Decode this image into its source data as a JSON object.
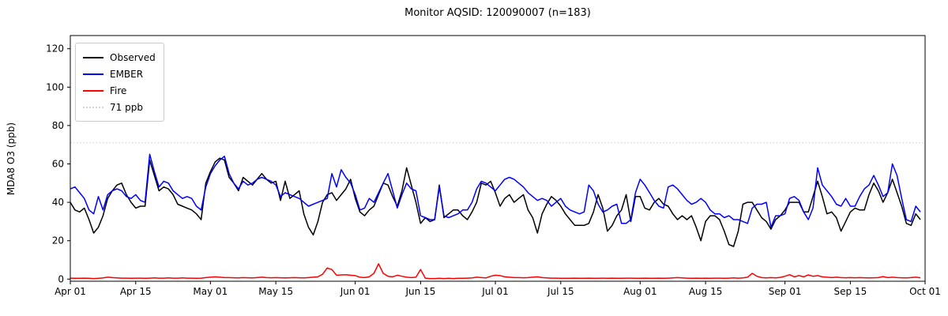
{
  "title": "Monitor AQSID: 120090007 (n=183)",
  "y_axis": {
    "label": "MDA8 O3 (ppb)",
    "ticks": [
      0,
      20,
      40,
      60,
      80,
      100,
      120
    ]
  },
  "x_axis": {
    "tick_labels": [
      "Apr 01",
      "Apr 15",
      "May 01",
      "May 15",
      "Jun 01",
      "Jun 15",
      "Jul 01",
      "Jul 15",
      "Aug 01",
      "Aug 15",
      "Sep 01",
      "Sep 15",
      "Oct 01"
    ],
    "tick_days": [
      0,
      14,
      30,
      44,
      61,
      75,
      91,
      105,
      122,
      136,
      153,
      167,
      183
    ]
  },
  "legend": {
    "items": [
      {
        "label": "Observed",
        "color": "#000000",
        "style": "solid"
      },
      {
        "label": "EMBER",
        "color": "#0000ff",
        "style": "solid"
      },
      {
        "label": "Fire",
        "color": "#ff0000",
        "style": "solid"
      },
      {
        "label": "71 ppb",
        "color": "#d3d3d3",
        "style": "dotted"
      }
    ]
  },
  "chart_data": {
    "type": "line",
    "title": "Monitor AQSID: 120090007 (n=183)",
    "xlabel": "",
    "ylabel": "MDA8 O3 (ppb)",
    "x_start": "Apr 01",
    "x_end": "Oct 01",
    "n_days": 183,
    "ylim": [
      -1.5,
      127
    ],
    "grid": false,
    "legend_position": "upper-left",
    "reference_line": {
      "label": "71 ppb",
      "value": 71,
      "color": "#d3d3d3",
      "style": "dotted"
    },
    "series": [
      {
        "name": "Observed",
        "color": "#000000",
        "values": [
          40,
          36,
          35,
          37,
          31,
          24,
          27,
          33,
          42,
          46,
          49,
          50,
          44,
          40,
          37,
          38,
          38,
          62,
          54,
          46,
          48,
          47,
          44,
          39,
          38,
          37,
          36,
          34,
          31,
          50,
          56,
          61,
          63,
          62,
          53,
          50,
          46,
          53,
          51,
          49,
          52,
          55,
          52,
          50,
          51,
          41,
          51,
          42,
          44,
          46,
          34,
          27,
          23,
          30,
          40,
          44,
          45,
          41,
          44,
          47,
          52,
          42,
          35,
          33,
          36,
          38,
          44,
          50,
          49,
          43,
          38,
          46,
          58,
          49,
          40,
          29,
          32,
          30,
          31,
          49,
          32,
          34,
          36,
          36,
          33,
          31,
          35,
          40,
          50,
          49,
          51,
          45,
          38,
          42,
          44,
          40,
          42,
          44,
          36,
          32,
          24,
          34,
          39,
          43,
          41,
          38,
          34,
          31,
          28,
          28,
          28,
          29,
          35,
          44,
          37,
          25,
          28,
          33,
          36,
          44,
          30,
          43,
          43,
          37,
          36,
          40,
          42,
          39,
          38,
          34,
          31,
          33,
          31,
          33,
          27,
          20,
          30,
          33,
          33,
          31,
          25,
          18,
          17,
          25,
          39,
          40,
          40,
          36,
          32,
          30,
          26,
          31,
          33,
          36,
          40,
          40,
          40,
          35,
          35,
          43,
          51,
          43,
          34,
          35,
          32,
          25,
          30,
          35,
          37,
          36,
          36,
          44,
          50,
          46,
          40,
          45,
          52,
          45,
          38,
          29,
          28,
          34,
          31
        ]
      },
      {
        "name": "EMBER",
        "color": "#0000ff",
        "values": [
          47,
          48,
          45,
          42,
          36,
          34,
          43,
          36,
          44,
          46,
          47,
          46,
          43,
          42,
          44,
          41,
          40,
          65,
          56,
          48,
          51,
          50,
          46,
          44,
          42,
          43,
          42,
          38,
          36,
          48,
          55,
          59,
          62,
          64,
          55,
          50,
          47,
          51,
          49,
          50,
          52,
          53,
          52,
          51,
          49,
          43,
          45,
          44,
          43,
          42,
          40,
          38,
          39,
          40,
          41,
          42,
          55,
          48,
          57,
          53,
          50,
          44,
          36,
          37,
          42,
          40,
          45,
          50,
          55,
          46,
          37,
          44,
          50,
          47,
          46,
          33,
          32,
          31,
          31,
          48,
          33,
          32,
          33,
          34,
          36,
          36,
          40,
          47,
          51,
          50,
          48,
          46,
          49,
          52,
          53,
          52,
          50,
          48,
          45,
          43,
          41,
          42,
          41,
          38,
          40,
          42,
          38,
          36,
          35,
          34,
          35,
          49,
          46,
          39,
          35,
          36,
          38,
          39,
          29,
          29,
          31,
          45,
          52,
          49,
          45,
          41,
          38,
          37,
          48,
          49,
          47,
          44,
          41,
          39,
          40,
          42,
          40,
          36,
          34,
          34,
          32,
          33,
          31,
          31,
          30,
          29,
          37,
          39,
          39,
          40,
          27,
          33,
          33,
          34,
          42,
          43,
          41,
          35,
          31,
          37,
          58,
          49,
          46,
          43,
          39,
          38,
          42,
          38,
          38,
          43,
          47,
          49,
          54,
          49,
          43,
          45,
          60,
          54,
          42,
          31,
          30,
          38,
          35
        ]
      },
      {
        "name": "Fire",
        "color": "#ff0000",
        "values": [
          0.5,
          0.4,
          0.4,
          0.5,
          0.4,
          0.3,
          0.4,
          0.6,
          1,
          0.8,
          0.6,
          0.5,
          0.5,
          0.4,
          0.5,
          0.5,
          0.4,
          0.5,
          0.6,
          0.5,
          0.5,
          0.6,
          0.5,
          0.5,
          0.6,
          0.5,
          0.5,
          0.4,
          0.5,
          0.8,
          1,
          1.2,
          1,
          0.8,
          0.8,
          0.7,
          0.6,
          0.8,
          0.7,
          0.6,
          0.8,
          1,
          0.8,
          0.7,
          0.8,
          0.7,
          0.6,
          0.7,
          0.8,
          0.7,
          0.6,
          0.8,
          1,
          1.2,
          2.5,
          5.8,
          5,
          2,
          2.2,
          2.3,
          2,
          1.8,
          1,
          0.8,
          1.2,
          3,
          8,
          3,
          1.5,
          1.2,
          2,
          1.5,
          1,
          0.8,
          1,
          5,
          0.5,
          0.3,
          0.3,
          0.4,
          0.3,
          0.4,
          0.3,
          0.4,
          0.4,
          0.5,
          0.6,
          1,
          0.8,
          0.6,
          1.5,
          2,
          1.8,
          1.2,
          1,
          0.8,
          0.8,
          0.7,
          0.8,
          1,
          1.2,
          0.8,
          0.6,
          0.5,
          0.5,
          0.4,
          0.4,
          0.4,
          0.5,
          0.4,
          0.4,
          0.5,
          0.4,
          0.4,
          0.5,
          0.4,
          0.5,
          0.4,
          0.4,
          0.5,
          0.5,
          0.4,
          0.4,
          0.5,
          0.4,
          0.4,
          0.5,
          0.4,
          0.5,
          0.6,
          0.8,
          0.6,
          0.5,
          0.4,
          0.5,
          0.4,
          0.5,
          0.4,
          0.5,
          0.5,
          0.4,
          0.5,
          0.6,
          0.5,
          0.6,
          1,
          3,
          1.5,
          0.8,
          0.6,
          0.8,
          0.6,
          0.9,
          1.5,
          2.3,
          1.2,
          1.8,
          1.2,
          2.2,
          1.5,
          1.8,
          1.2,
          1,
          0.8,
          1,
          0.8,
          0.7,
          0.8,
          0.7,
          0.8,
          0.7,
          0.6,
          0.7,
          0.8,
          1.3,
          0.8,
          1,
          0.8,
          0.7,
          0.6,
          0.8,
          1,
          0.7
        ]
      }
    ]
  }
}
